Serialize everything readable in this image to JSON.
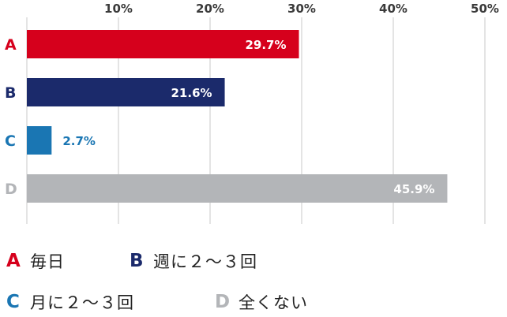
{
  "chart_data": {
    "type": "bar",
    "orientation": "horizontal",
    "categories": [
      "A",
      "B",
      "C",
      "D"
    ],
    "values": [
      29.7,
      21.6,
      2.7,
      45.9
    ],
    "value_labels": [
      "29.7%",
      "21.6%",
      "2.7%",
      "45.9%"
    ],
    "xlim": [
      0,
      50
    ],
    "xticks": [
      10,
      20,
      30,
      40,
      50
    ],
    "xtick_labels": [
      "10%",
      "20%",
      "30%",
      "40%",
      "50%"
    ],
    "grid": true,
    "colors": [
      "#d6001c",
      "#1b2a6b",
      "#1a76b3",
      "#b3b5b8"
    ],
    "legend": [
      {
        "key": "A",
        "label": "毎日"
      },
      {
        "key": "B",
        "label": "週に２〜３回"
      },
      {
        "key": "C",
        "label": "月に２〜３回"
      },
      {
        "key": "D",
        "label": "全くない"
      }
    ]
  }
}
